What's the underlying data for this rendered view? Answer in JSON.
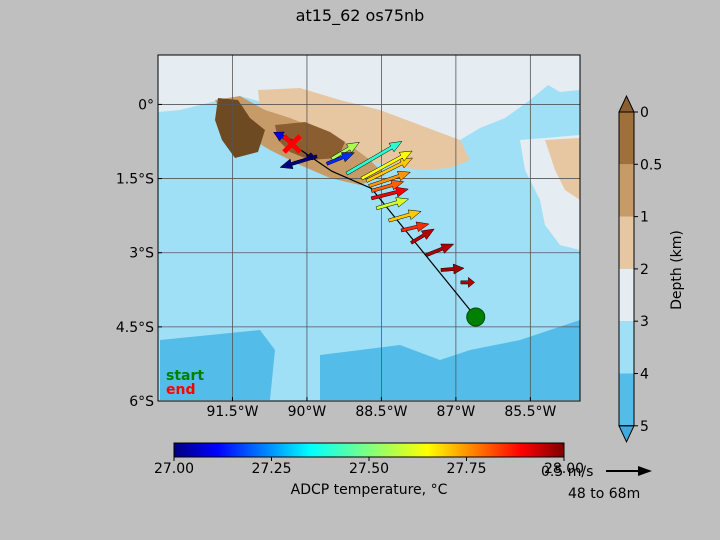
{
  "chart_data": {
    "type": "map",
    "title": "at15_62 os75nb",
    "xlabel": "",
    "ylabel": "",
    "xlim": [
      -93.0,
      -84.5
    ],
    "ylim": [
      -6.0,
      1.0
    ],
    "x_ticks": [
      -91.5,
      -90,
      -88.5,
      -87,
      -85.5
    ],
    "x_tick_labels": [
      "91.5°W",
      "90°W",
      "88.5°W",
      "87°W",
      "85.5°W"
    ],
    "y_ticks": [
      0,
      -1.5,
      -3,
      -4.5,
      -6
    ],
    "y_tick_labels": [
      "0°",
      "1.5°S",
      "3°S",
      "4.5°S",
      "6°S"
    ],
    "grid": true,
    "start": {
      "lon": -86.6,
      "lat": -4.3,
      "label": "start",
      "color": "#008000"
    },
    "end": {
      "lon": -90.3,
      "lat": -0.8,
      "label": "end",
      "color": "#ff0000"
    },
    "track": [
      {
        "lon": -86.6,
        "lat": -4.3
      },
      {
        "lon": -88.7,
        "lat": -1.7
      },
      {
        "lon": -89.5,
        "lat": -1.35
      },
      {
        "lon": -90.3,
        "lat": -0.8
      }
    ],
    "vectors": [
      {
        "lon": -86.9,
        "lat": -3.6,
        "u": 0.15,
        "v": 0.0,
        "temp": 27.95
      },
      {
        "lon": -87.3,
        "lat": -3.35,
        "u": 0.25,
        "v": 0.02,
        "temp": 27.97
      },
      {
        "lon": -87.6,
        "lat": -3.05,
        "u": 0.3,
        "v": 0.12,
        "temp": 27.96
      },
      {
        "lon": -87.9,
        "lat": -2.8,
        "u": 0.25,
        "v": 0.15,
        "temp": 27.95
      },
      {
        "lon": -88.1,
        "lat": -2.55,
        "u": 0.3,
        "v": 0.07,
        "temp": 27.85
      },
      {
        "lon": -88.35,
        "lat": -2.35,
        "u": 0.35,
        "v": 0.1,
        "temp": 27.7
      },
      {
        "lon": -88.6,
        "lat": -2.1,
        "u": 0.35,
        "v": 0.1,
        "temp": 27.6
      },
      {
        "lon": -88.7,
        "lat": -1.9,
        "u": 0.4,
        "v": 0.1,
        "temp": 27.9
      },
      {
        "lon": -88.7,
        "lat": -1.75,
        "u": 0.35,
        "v": 0.1,
        "temp": 27.8
      },
      {
        "lon": -88.75,
        "lat": -1.65,
        "u": 0.45,
        "v": 0.15,
        "temp": 27.75
      },
      {
        "lon": -88.8,
        "lat": -1.55,
        "u": 0.5,
        "v": 0.25,
        "temp": 27.7
      },
      {
        "lon": -88.9,
        "lat": -1.5,
        "u": 0.55,
        "v": 0.3,
        "temp": 27.65
      },
      {
        "lon": -89.2,
        "lat": -1.4,
        "u": 0.6,
        "v": 0.35,
        "temp": 27.4
      },
      {
        "lon": -89.5,
        "lat": -1.1,
        "u": 0.3,
        "v": 0.18,
        "temp": 27.55
      },
      {
        "lon": -89.6,
        "lat": -1.2,
        "u": 0.3,
        "v": 0.12,
        "temp": 27.15
      },
      {
        "lon": -89.9,
        "lat": -1.0,
        "u": -0.05,
        "v": -0.05,
        "temp": 27.0
      },
      {
        "lon": -89.8,
        "lat": -1.05,
        "u": -0.4,
        "v": -0.12,
        "temp": 27.0
      },
      {
        "lon": -90.3,
        "lat": -0.75,
        "u": -0.2,
        "v": 0.1,
        "temp": 27.1
      }
    ],
    "colorbar_temperature": {
      "label": "ADCP temperature, °C",
      "min": 27.0,
      "max": 28.0,
      "ticks": [
        27.0,
        27.25,
        27.5,
        27.75,
        28.0
      ],
      "tick_labels": [
        "27.00",
        "27.25",
        "27.50",
        "27.75",
        "28.00"
      ]
    },
    "colorbar_depth": {
      "label": "Depth (km)",
      "ticks": [
        0,
        0.5,
        1,
        2,
        3,
        4,
        5
      ],
      "tick_labels": [
        "0",
        "0.5",
        "1",
        "2",
        "3",
        "4",
        "5"
      ],
      "colors": [
        "#a0703a",
        "#c69b67",
        "#e6c7a2",
        "#e6edf2",
        "#9fe0f7",
        "#54bce9"
      ]
    },
    "reference_vector": {
      "label": "0.5 m/s",
      "depth_range": "48 to 68m"
    }
  }
}
